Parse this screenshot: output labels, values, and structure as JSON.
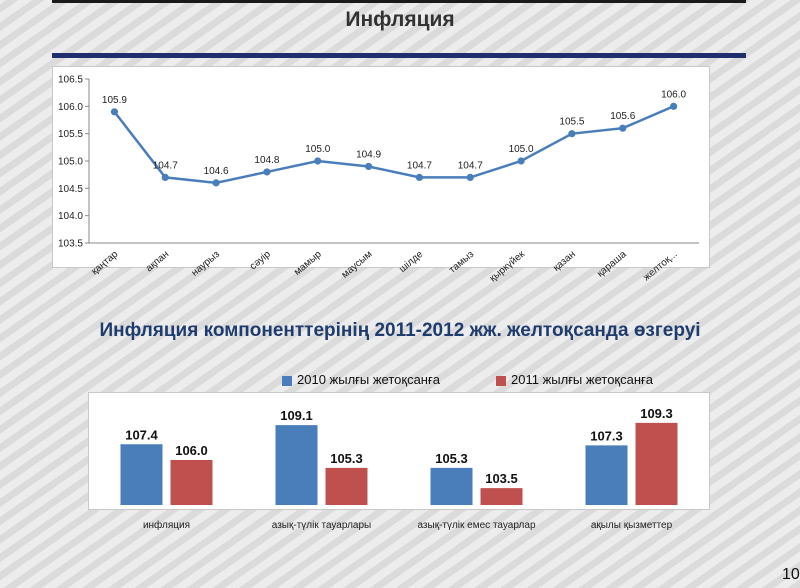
{
  "title": "Инфляция",
  "subtitle": "Инфляция компоненттерінің 2011-2012 жж. желтоқсанда өзгеруі",
  "page_number": "10",
  "colors": {
    "line": "#4a7ebb",
    "series1": "#4a7ebb",
    "series2": "#c0504d",
    "accent": "#1f2f6e"
  },
  "chart_data": [
    {
      "type": "line",
      "categories": [
        "қаңтар",
        "ақпан",
        "наурыз",
        "сәуір",
        "мамыр",
        "маусым",
        "шілде",
        "тамыз",
        "қыркүйек",
        "қазан",
        "қараша",
        "желтоқ..."
      ],
      "series": [
        {
          "values": [
            105.9,
            104.7,
            104.6,
            104.8,
            105.0,
            104.9,
            104.7,
            104.7,
            105.0,
            105.5,
            105.6,
            106.0
          ]
        }
      ],
      "data_labels": [
        "105.9",
        "104.7",
        "104.6",
        "104.8",
        "105.0",
        "104.9",
        "104.7",
        "104.7",
        "105.0",
        "105.5",
        "105.6",
        "106.0"
      ],
      "yticks": [
        "106.5",
        "106.0",
        "105.5",
        "105.0",
        "104.5",
        "104.0",
        "103.5"
      ],
      "ylim": [
        103.5,
        106.5
      ],
      "grid": false
    },
    {
      "type": "bar",
      "categories": [
        "инфляция",
        "азық-түлік тауарлары",
        "азық-түлік емес тауарлар",
        "ақылы қызметтер"
      ],
      "series": [
        {
          "name": "2010 жылғы жетоқсанға",
          "values": [
            107.4,
            109.1,
            105.3,
            107.3
          ],
          "labels": [
            "107.4",
            "109.1",
            "105.3",
            "107.3"
          ]
        },
        {
          "name": "2011 жылғы жетоқсанға",
          "values": [
            106.0,
            105.3,
            103.5,
            109.3
          ],
          "labels": [
            "106.0",
            "105.3",
            "103.5",
            "109.3"
          ]
        }
      ],
      "ylim": [
        102,
        110
      ],
      "legend": "top"
    }
  ]
}
